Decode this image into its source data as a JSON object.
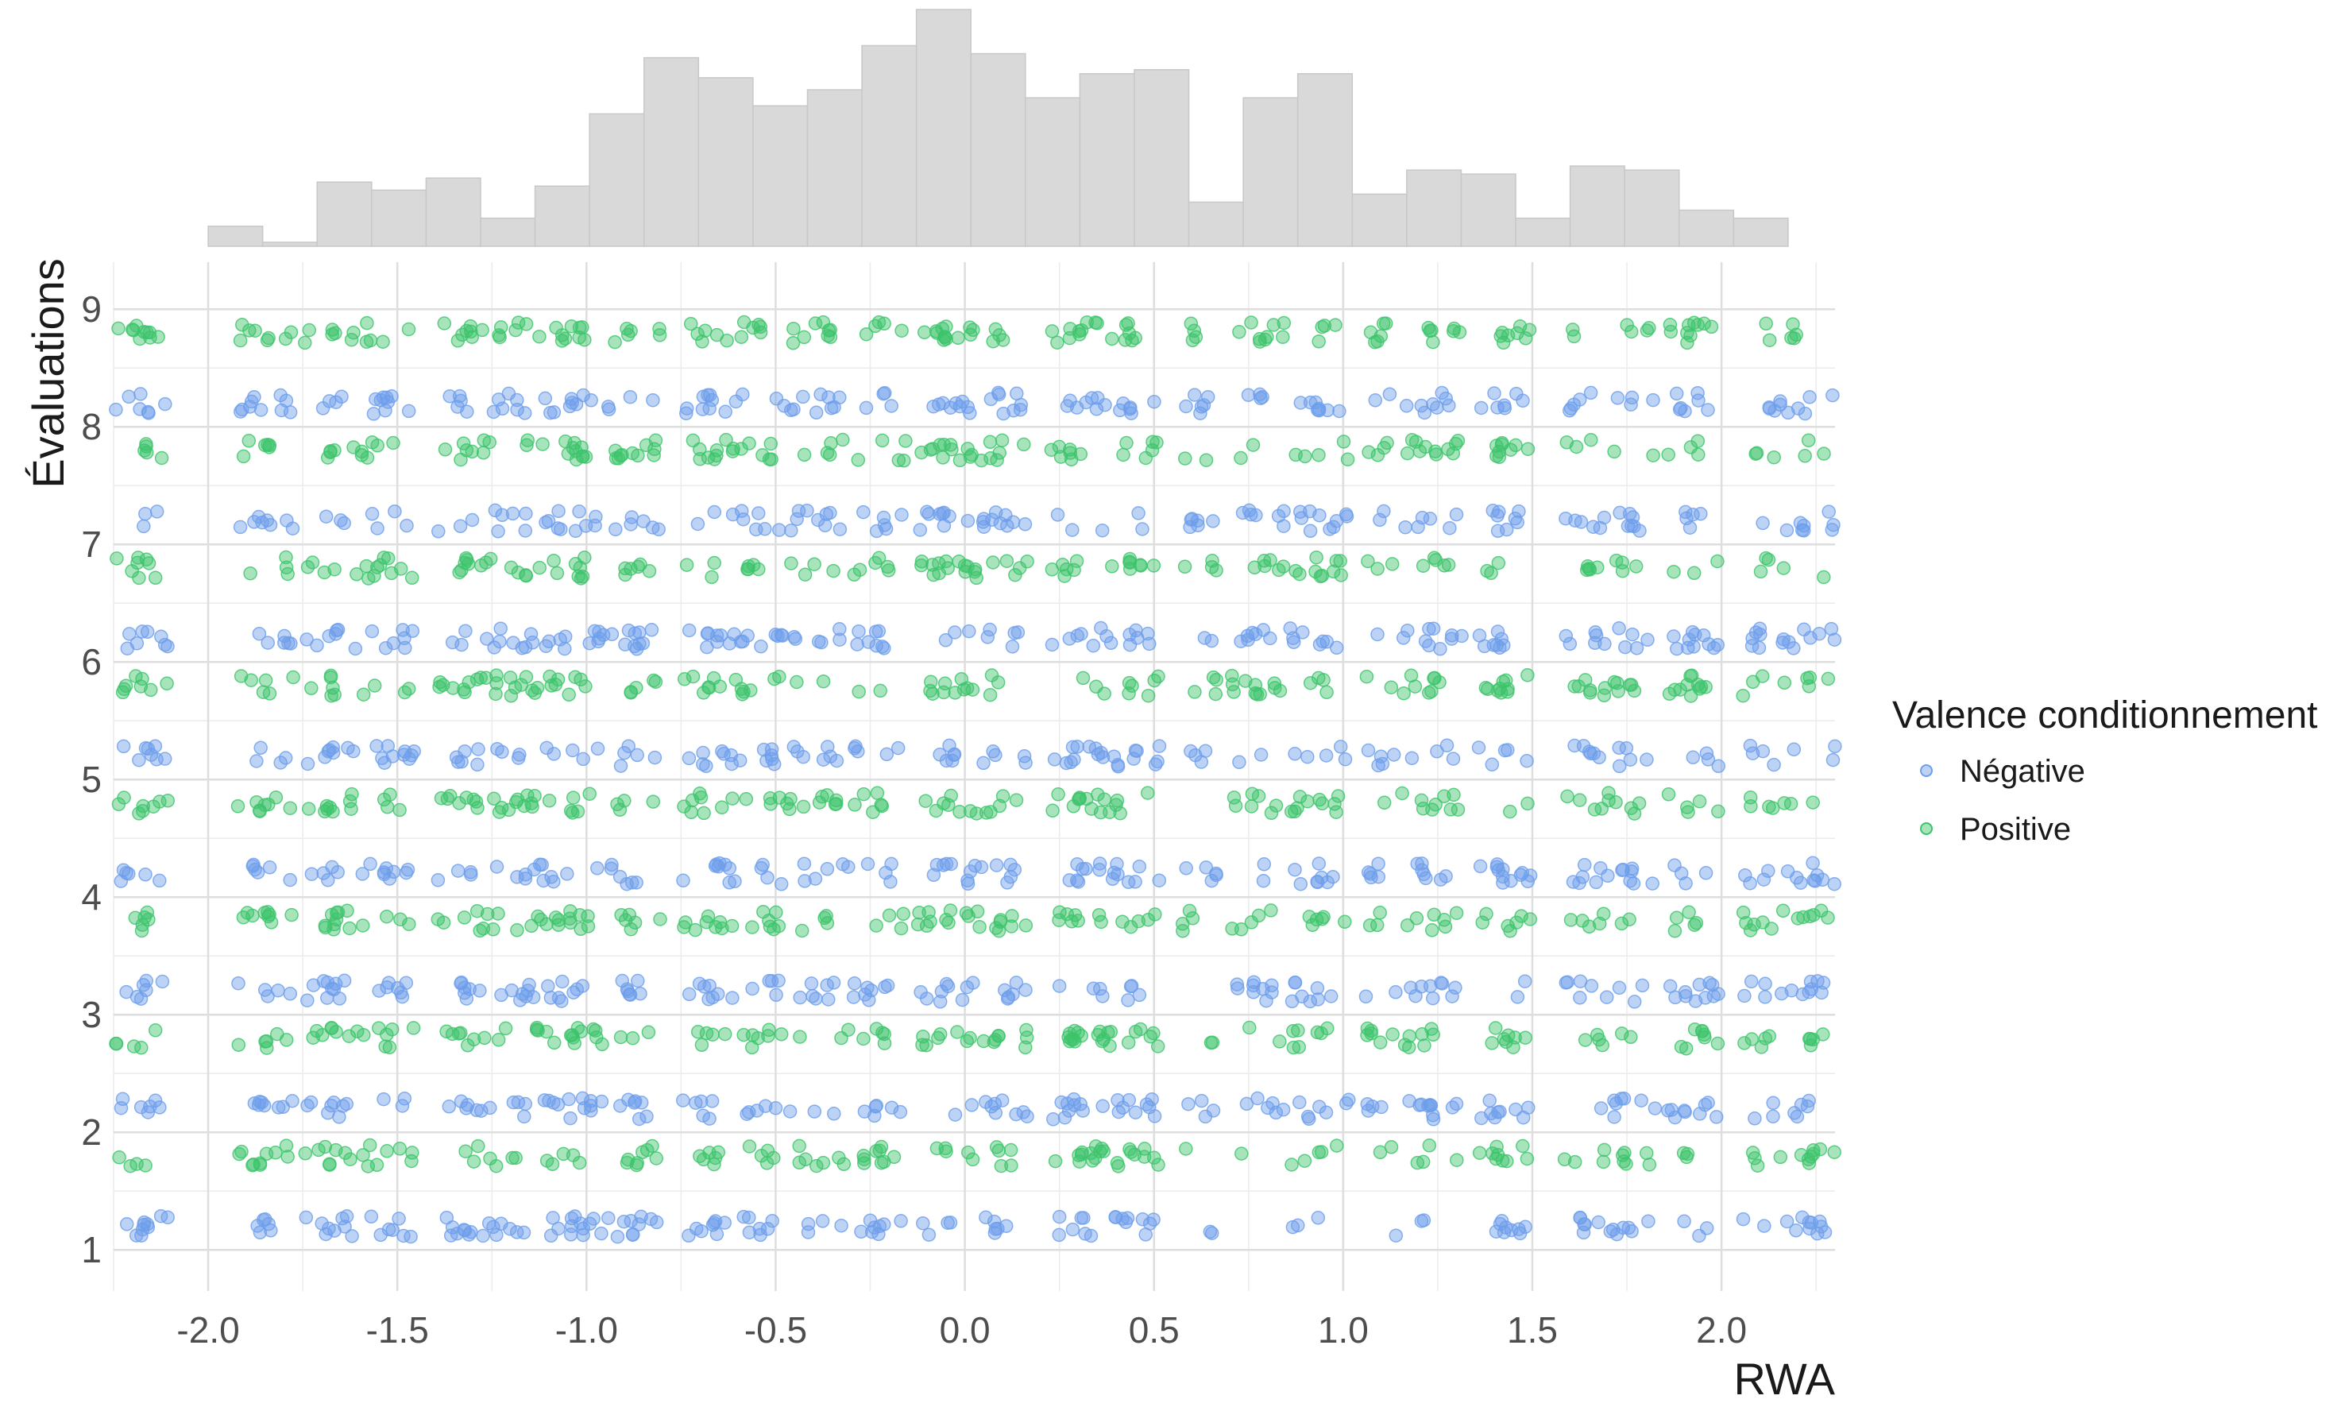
{
  "chart_data": {
    "type": "scatter",
    "xlabel": "RWA",
    "ylabel": "Évaluations",
    "xlim": [
      -2.25,
      2.3
    ],
    "ylim": [
      0.65,
      9.4
    ],
    "x_ticks": [
      -2.0,
      -1.5,
      -1.0,
      -0.5,
      0.0,
      0.5,
      1.0,
      1.5,
      2.0
    ],
    "x_tick_labels": [
      "-2.0",
      "-1.5",
      "-1.0",
      "-0.5",
      "0.0",
      "0.5",
      "1.0",
      "1.5",
      "2.0"
    ],
    "y_ticks": [
      1,
      2,
      3,
      4,
      5,
      6,
      7,
      8,
      9
    ],
    "y_tick_labels": [
      "1",
      "2",
      "3",
      "4",
      "5",
      "6",
      "7",
      "8",
      "9"
    ],
    "grid": true,
    "jitter": true,
    "point_alpha": 0.45,
    "legend": {
      "title": "Valence conditionnement",
      "placement": "right",
      "entries": [
        {
          "label": "Négative",
          "color": "#6d9eeb"
        },
        {
          "label": "Positive",
          "color": "#3cc46a"
        }
      ]
    },
    "rwa_levels": [
      -2.2,
      -2.15,
      -1.88,
      -1.82,
      -1.7,
      -1.65,
      -1.55,
      -1.5,
      -1.35,
      -1.28,
      -1.2,
      -1.12,
      -1.05,
      -1.0,
      -0.9,
      -0.85,
      -0.7,
      -0.65,
      -0.55,
      -0.48,
      -0.4,
      -0.35,
      -0.25,
      -0.2,
      -0.08,
      -0.03,
      0.05,
      0.12,
      0.27,
      0.32,
      0.4,
      0.47,
      0.62,
      0.75,
      0.8,
      0.9,
      0.97,
      1.1,
      1.2,
      1.27,
      1.4,
      1.45,
      1.63,
      1.72,
      1.78,
      1.9,
      1.95,
      2.1,
      2.2,
      2.27
    ],
    "series": [
      {
        "name": "Négative",
        "color": "#6d9eeb",
        "ratings": [
          1,
          2,
          3,
          4,
          5,
          6,
          7,
          8
        ]
      },
      {
        "name": "Positive",
        "color": "#3cc46a",
        "ratings": [
          2,
          3,
          4,
          5,
          6,
          7,
          8,
          9
        ]
      }
    ],
    "marginal_histogram": {
      "variable": "RWA",
      "bin_edges": [
        -2.0,
        -1.856,
        -1.712,
        -1.568,
        -1.424,
        -1.28,
        -1.136,
        -0.992,
        -0.848,
        -0.704,
        -0.56,
        -0.416,
        -0.272,
        -0.128,
        0.016,
        0.16,
        0.304,
        0.448,
        0.592,
        0.736,
        0.88,
        1.024,
        1.168,
        1.312,
        1.456,
        1.6,
        1.744,
        1.888,
        2.032,
        2.176
      ],
      "counts": [
        5,
        1,
        16,
        14,
        17,
        7,
        15,
        33,
        47,
        42,
        35,
        39,
        50,
        59,
        48,
        37,
        43,
        44,
        11,
        37,
        43,
        13,
        19,
        18,
        7,
        20,
        19,
        9,
        7
      ]
    }
  }
}
